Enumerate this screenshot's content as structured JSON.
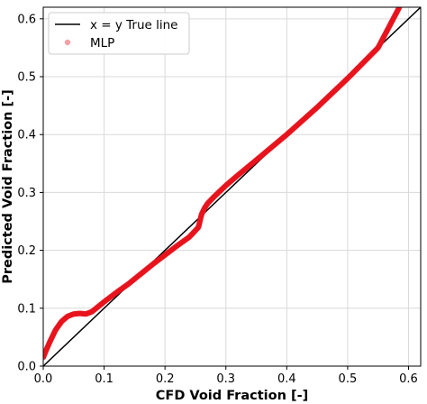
{
  "chart_data": {
    "type": "scatter",
    "title": "",
    "xlabel": "CFD Void Fraction [-]",
    "ylabel": "Predicted Void Fraction [-]",
    "xlim": [
      0.0,
      0.62
    ],
    "ylim": [
      0.0,
      0.62
    ],
    "xticks": [
      "0.0",
      "0.1",
      "0.2",
      "0.3",
      "0.4",
      "0.5",
      "0.6"
    ],
    "yticks": [
      "0.0",
      "0.1",
      "0.2",
      "0.3",
      "0.4",
      "0.5",
      "0.6"
    ],
    "grid": true,
    "legend_position": "top-left",
    "series": [
      {
        "name": "x = y True line",
        "kind": "line",
        "color": "#000000",
        "x": [
          0.0,
          0.62
        ],
        "y": [
          0.0,
          0.62
        ]
      },
      {
        "name": "MLP",
        "kind": "scatter",
        "color": "#e8141e",
        "x": [
          0.0,
          0.005,
          0.01,
          0.02,
          0.03,
          0.04,
          0.05,
          0.06,
          0.07,
          0.08,
          0.1,
          0.12,
          0.14,
          0.16,
          0.18,
          0.2,
          0.22,
          0.24,
          0.255,
          0.26,
          0.265,
          0.27,
          0.28,
          0.3,
          0.32,
          0.35,
          0.4,
          0.45,
          0.5,
          0.55,
          0.585
        ],
        "y": [
          0.015,
          0.028,
          0.04,
          0.062,
          0.077,
          0.086,
          0.09,
          0.091,
          0.09,
          0.094,
          0.111,
          0.127,
          0.142,
          0.159,
          0.176,
          0.192,
          0.208,
          0.223,
          0.24,
          0.262,
          0.273,
          0.281,
          0.292,
          0.312,
          0.33,
          0.356,
          0.4,
          0.447,
          0.497,
          0.55,
          0.62
        ]
      }
    ]
  }
}
